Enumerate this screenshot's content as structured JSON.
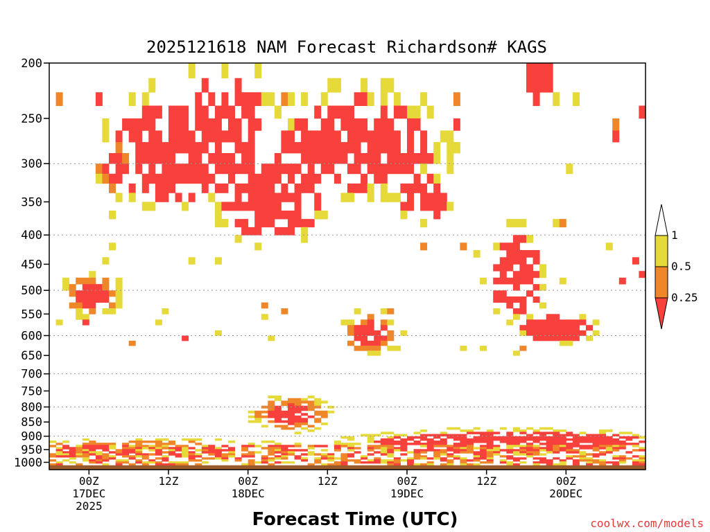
{
  "chart_data": {
    "type": "heatmap",
    "title": "2025121618 NAM Forecast Richardson# KAGS",
    "xlabel": "Forecast Time (UTC)",
    "ylabel": "",
    "x_unit": "forecast hour from 00Z 17DEC 2025",
    "xlim": [
      -6,
      84
    ],
    "y_scale": "log",
    "ylim": [
      1030,
      200
    ],
    "y_ticks": [
      200,
      250,
      300,
      350,
      400,
      450,
      500,
      550,
      600,
      650,
      700,
      750,
      800,
      850,
      900,
      950,
      1000
    ],
    "gridlines_at": [
      300,
      400,
      500,
      600,
      700,
      800,
      900
    ],
    "x_ticks": [
      {
        "hour": 0,
        "lines": [
          "00Z",
          "17DEC",
          "2025"
        ]
      },
      {
        "hour": 12,
        "lines": [
          "12Z"
        ]
      },
      {
        "hour": 24,
        "lines": [
          "00Z",
          "18DEC"
        ]
      },
      {
        "hour": 36,
        "lines": [
          "12Z"
        ]
      },
      {
        "hour": 48,
        "lines": [
          "00Z",
          "19DEC"
        ]
      },
      {
        "hour": 60,
        "lines": [
          "12Z"
        ]
      },
      {
        "hour": 72,
        "lines": [
          "00Z",
          "20DEC"
        ]
      }
    ],
    "colorbar": {
      "levels": [
        {
          "label": "1",
          "value": 1
        },
        {
          "label": "0.5",
          "value": 0.5
        },
        {
          "label": "0.25",
          "value": 0.25
        }
      ],
      "classes": [
        {
          "range": "0.5-1",
          "color": "#e6d93a"
        },
        {
          "range": "0.25-0.5",
          "color": "#f0862a"
        },
        {
          "range": "<0.25",
          "color": "#f8413c"
        }
      ]
    },
    "ground_color": "#9a5a2e",
    "blobs": [
      {
        "hour": 3.5,
        "p": 298,
        "dh": 2.0,
        "dp": 22,
        "cls": 2
      },
      {
        "hour": 12,
        "p": 285,
        "dh": 7,
        "dp": 45,
        "cls": 3
      },
      {
        "hour": 20,
        "p": 270,
        "dh": 6,
        "dp": 55,
        "cls": 3
      },
      {
        "hour": 27,
        "p": 340,
        "dh": 6,
        "dp": 45,
        "cls": 3
      },
      {
        "hour": 40,
        "p": 275,
        "dh": 9,
        "dp": 40,
        "cls": 3
      },
      {
        "hour": 50,
        "p": 340,
        "dh": 3,
        "dp": 25,
        "cls": 3
      },
      {
        "hour": 68,
        "p": 210,
        "dh": 2,
        "dp": 15,
        "cls": 3
      },
      {
        "hour": 64,
        "p": 470,
        "dh": 3,
        "dp": 60,
        "cls": 3
      },
      {
        "hour": 70,
        "p": 580,
        "dh": 4,
        "dp": 25,
        "cls": 3
      },
      {
        "hour": 0,
        "p": 505,
        "dh": 3,
        "dp": 30,
        "cls": 2
      },
      {
        "hour": 30,
        "p": 820,
        "dh": 4,
        "dp": 40,
        "cls": 2
      },
      {
        "hour": 42,
        "p": 590,
        "dh": 3,
        "dp": 35,
        "cls": 2
      },
      {
        "hour": 64,
        "p": 930,
        "dh": 18,
        "dp": 40,
        "cls": 3
      },
      {
        "hour": 8,
        "p": 945,
        "dh": 16,
        "dp": 25,
        "cls": 2
      }
    ]
  },
  "credit": "coolwx.com/models"
}
